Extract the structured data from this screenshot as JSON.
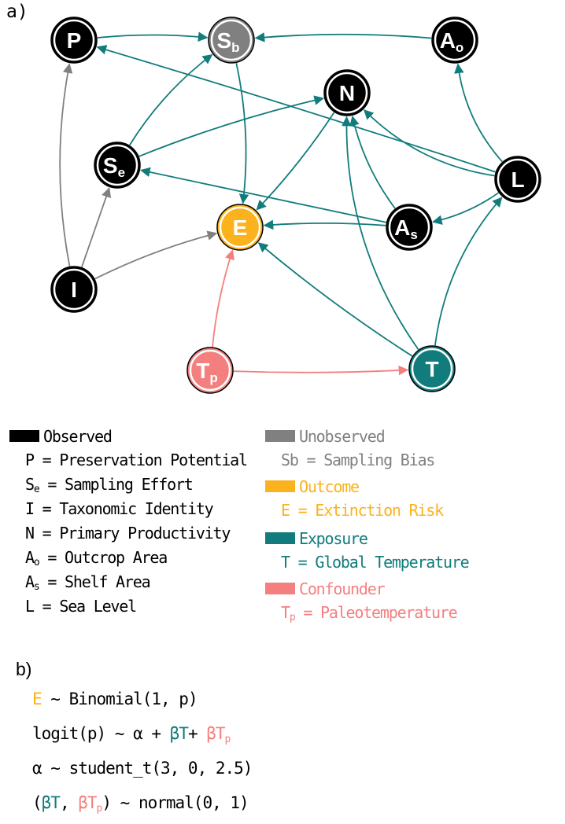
{
  "panels": {
    "a": "a)",
    "b": "b)"
  },
  "colors": {
    "observed": "#000000",
    "unobserved": "#808080",
    "outcome": "#FBB21C",
    "exposure": "#127C7C",
    "confounder": "#F47F7F",
    "edge_default": "#127C7C"
  },
  "nodes": [
    {
      "id": "P",
      "main": "P",
      "sub": "",
      "group": "observed"
    },
    {
      "id": "Sb",
      "main": "S",
      "sub": "b",
      "group": "unobserved"
    },
    {
      "id": "Ao",
      "main": "A",
      "sub": "o",
      "group": "observed"
    },
    {
      "id": "N",
      "main": "N",
      "sub": "",
      "group": "observed"
    },
    {
      "id": "Se",
      "main": "S",
      "sub": "e",
      "group": "observed"
    },
    {
      "id": "L",
      "main": "L",
      "sub": "",
      "group": "observed"
    },
    {
      "id": "E",
      "main": "E",
      "sub": "",
      "group": "outcome"
    },
    {
      "id": "As",
      "main": "A",
      "sub": "s",
      "group": "observed"
    },
    {
      "id": "I",
      "main": "I",
      "sub": "",
      "group": "observed"
    },
    {
      "id": "Tp",
      "main": "T",
      "sub": "p",
      "group": "confounder"
    },
    {
      "id": "T",
      "main": "T",
      "sub": "",
      "group": "exposure"
    }
  ],
  "edges": [
    {
      "from": "P",
      "to": "Sb",
      "color": "exposure"
    },
    {
      "from": "Ao",
      "to": "Sb",
      "color": "exposure"
    },
    {
      "from": "Sb",
      "to": "E",
      "color": "exposure"
    },
    {
      "from": "L",
      "to": "P",
      "color": "exposure"
    },
    {
      "from": "L",
      "to": "Ao",
      "color": "exposure"
    },
    {
      "from": "L",
      "to": "N",
      "color": "exposure"
    },
    {
      "from": "L",
      "to": "As",
      "color": "exposure"
    },
    {
      "from": "Se",
      "to": "Sb",
      "color": "exposure"
    },
    {
      "from": "Se",
      "to": "N",
      "color": "exposure"
    },
    {
      "from": "As",
      "to": "Se",
      "color": "exposure"
    },
    {
      "from": "As",
      "to": "N",
      "color": "exposure"
    },
    {
      "from": "As",
      "to": "E",
      "color": "exposure"
    },
    {
      "from": "N",
      "to": "E",
      "color": "exposure"
    },
    {
      "from": "T",
      "to": "N",
      "color": "exposure"
    },
    {
      "from": "T",
      "to": "L",
      "color": "exposure"
    },
    {
      "from": "T",
      "to": "E",
      "color": "exposure"
    },
    {
      "from": "I",
      "to": "P",
      "color": "unobserved"
    },
    {
      "from": "I",
      "to": "Se",
      "color": "unobserved"
    },
    {
      "from": "I",
      "to": "E",
      "color": "unobserved"
    },
    {
      "from": "Tp",
      "to": "E",
      "color": "confounder"
    },
    {
      "from": "Tp",
      "to": "T",
      "color": "confounder"
    }
  ],
  "legend": {
    "observed": {
      "title": "Observed",
      "items": [
        {
          "sym": "P",
          "sub": "",
          "text": " = Preservation Potential"
        },
        {
          "sym": "S",
          "sub": "e",
          "text": " = Sampling Effort"
        },
        {
          "sym": "I",
          "sub": "",
          "text": " = Taxonomic Identity"
        },
        {
          "sym": "N",
          "sub": "",
          "text": " = Primary Productivity"
        },
        {
          "sym": "A",
          "sub": "o",
          "text": " = Outcrop Area"
        },
        {
          "sym": "A",
          "sub": "s",
          "text": " = Shelf Area"
        },
        {
          "sym": "L",
          "sub": "",
          "text": " = Sea Level"
        }
      ]
    },
    "unobserved": {
      "title": "Unobserved",
      "item": "Sb = Sampling Bias"
    },
    "outcome": {
      "title": "Outcome",
      "item": "E = Extinction Risk"
    },
    "exposure": {
      "title": "Exposure",
      "item": "T = Global Temperature"
    },
    "confounder": {
      "title": "Confounder",
      "item_sym": "T",
      "item_sub": "p",
      "item_text": " = Paleotemperature"
    }
  },
  "equations": {
    "line1": {
      "E": "E",
      "rest": " ~ Binomial(1, p)"
    },
    "line2": {
      "pre": "logit(p) ~ α + ",
      "bT": "βT",
      "plus": "+ ",
      "bTp": "βT",
      "bTp_sub": "p"
    },
    "line3": "α  ~ student_t(3, 0, 2.5)",
    "line4": {
      "open": "(",
      "bT": "βT",
      "comma": ", ",
      "bTp": "βT",
      "bTp_sub": "p",
      "close": ") ~ normal(0, 1)"
    }
  }
}
